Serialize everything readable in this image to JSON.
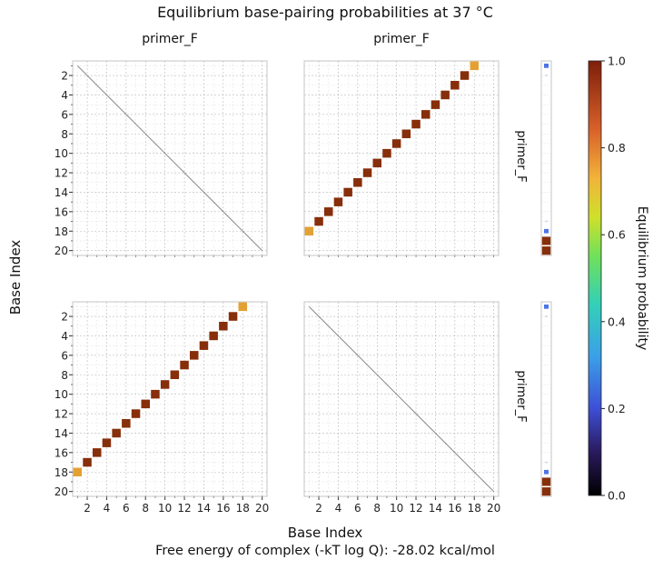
{
  "chart_data": {
    "type": "heatmap",
    "title": "Equilibrium base-pairing probabilities at 37 °C",
    "xlabel": "Base Index",
    "ylabel": "Base Index",
    "footer": "Free energy of complex (-kT log Q): -28.02 kcal/mol",
    "strand_name": "primer_F",
    "column_titles": [
      "primer_F",
      "primer_F"
    ],
    "row_side_labels": [
      "primer_F",
      "primer_F"
    ],
    "n_bases": 20,
    "axis_range": [
      0.5,
      20.5
    ],
    "x_ticks": [
      2,
      4,
      6,
      8,
      10,
      12,
      14,
      16,
      18,
      20
    ],
    "y_ticks": [
      2,
      4,
      6,
      8,
      10,
      12,
      14,
      16,
      18,
      20
    ],
    "x_tick_labels": [
      "2",
      "4",
      "6",
      "8",
      "10",
      "12",
      "14",
      "16",
      "18",
      "20"
    ],
    "y_tick_labels": [
      "2",
      "4",
      "6",
      "8",
      "10",
      "12",
      "14",
      "16",
      "18",
      "20"
    ],
    "colorbar": {
      "label": "Equilibrium probability",
      "range": [
        0.0,
        1.0
      ],
      "ticks": [
        0.0,
        0.2,
        0.4,
        0.6,
        0.8,
        1.0
      ],
      "tick_labels": [
        "0.0",
        "0.2",
        "0.4",
        "0.6",
        "0.8",
        "1.0"
      ]
    },
    "panels": [
      {
        "id": "top-left",
        "row": 0,
        "col": 0,
        "type": "diagonal-line",
        "cells": []
      },
      {
        "id": "top-right",
        "row": 0,
        "col": 1,
        "type": "pairs",
        "cells": [
          {
            "x": 1,
            "y": 18,
            "p": 0.85
          },
          {
            "x": 2,
            "y": 17,
            "p": 0.97
          },
          {
            "x": 3,
            "y": 16,
            "p": 0.97
          },
          {
            "x": 4,
            "y": 15,
            "p": 0.97
          },
          {
            "x": 5,
            "y": 14,
            "p": 0.97
          },
          {
            "x": 6,
            "y": 13,
            "p": 0.97
          },
          {
            "x": 7,
            "y": 12,
            "p": 0.97
          },
          {
            "x": 8,
            "y": 11,
            "p": 0.97
          },
          {
            "x": 9,
            "y": 10,
            "p": 0.97
          },
          {
            "x": 10,
            "y": 9,
            "p": 0.97
          },
          {
            "x": 11,
            "y": 8,
            "p": 0.97
          },
          {
            "x": 12,
            "y": 7,
            "p": 0.97
          },
          {
            "x": 13,
            "y": 6,
            "p": 0.97
          },
          {
            "x": 14,
            "y": 5,
            "p": 0.97
          },
          {
            "x": 15,
            "y": 4,
            "p": 0.97
          },
          {
            "x": 16,
            "y": 3,
            "p": 0.97
          },
          {
            "x": 17,
            "y": 2,
            "p": 0.97
          },
          {
            "x": 18,
            "y": 1,
            "p": 0.85
          }
        ]
      },
      {
        "id": "bottom-left",
        "row": 1,
        "col": 0,
        "type": "pairs",
        "cells": [
          {
            "x": 1,
            "y": 18,
            "p": 0.85
          },
          {
            "x": 2,
            "y": 17,
            "p": 0.97
          },
          {
            "x": 3,
            "y": 16,
            "p": 0.97
          },
          {
            "x": 4,
            "y": 15,
            "p": 0.97
          },
          {
            "x": 5,
            "y": 14,
            "p": 0.97
          },
          {
            "x": 6,
            "y": 13,
            "p": 0.97
          },
          {
            "x": 7,
            "y": 12,
            "p": 0.97
          },
          {
            "x": 8,
            "y": 11,
            "p": 0.97
          },
          {
            "x": 9,
            "y": 10,
            "p": 0.97
          },
          {
            "x": 10,
            "y": 9,
            "p": 0.97
          },
          {
            "x": 11,
            "y": 8,
            "p": 0.97
          },
          {
            "x": 12,
            "y": 7,
            "p": 0.97
          },
          {
            "x": 13,
            "y": 6,
            "p": 0.97
          },
          {
            "x": 14,
            "y": 5,
            "p": 0.97
          },
          {
            "x": 15,
            "y": 4,
            "p": 0.97
          },
          {
            "x": 16,
            "y": 3,
            "p": 0.97
          },
          {
            "x": 17,
            "y": 2,
            "p": 0.97
          },
          {
            "x": 18,
            "y": 1,
            "p": 0.85
          }
        ]
      },
      {
        "id": "bottom-right",
        "row": 1,
        "col": 1,
        "type": "diagonal-line",
        "cells": []
      }
    ],
    "unpaired_strips": [
      {
        "row": 0,
        "cells": [
          {
            "base": 1,
            "p": 0.18
          },
          {
            "base": 2,
            "p": 0.03
          },
          {
            "base": 17,
            "p": 0.03
          },
          {
            "base": 18,
            "p": 0.18
          },
          {
            "base": 19,
            "p": 0.97
          },
          {
            "base": 20,
            "p": 0.97
          }
        ]
      },
      {
        "row": 1,
        "cells": [
          {
            "base": 1,
            "p": 0.18
          },
          {
            "base": 2,
            "p": 0.03
          },
          {
            "base": 17,
            "p": 0.03
          },
          {
            "base": 18,
            "p": 0.18
          },
          {
            "base": 19,
            "p": 0.97
          },
          {
            "base": 20,
            "p": 0.97
          }
        ]
      }
    ]
  }
}
